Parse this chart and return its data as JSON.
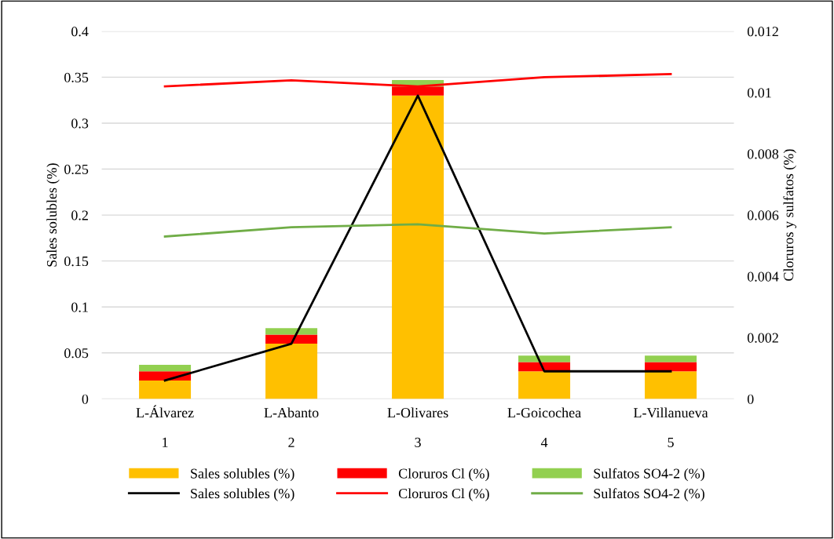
{
  "chart_data": {
    "type": "bar",
    "stacked": true,
    "ylabel": "Sales solubles (%)",
    "y2label": "Cloruros y sulfatos (%)",
    "categories": [
      "L-Álvarez\n\n1",
      "L-Abanto\n\n2",
      "L-Olivares\n\n3",
      "L-Goicochea\n\n4",
      "L-Villanueva\n\n5"
    ],
    "series": [
      {
        "name": "Sales solubles (%)",
        "color": "#ffc000",
        "values": [
          0.02,
          0.06,
          0.33,
          0.03,
          0.03
        ]
      },
      {
        "name": "Cloruros Cl (%)",
        "color": "#ff0000",
        "values": [
          0.01,
          0.01,
          0.01,
          0.01,
          0.01
        ]
      },
      {
        "name": "Sulfatos SO4-2 (%)",
        "color": "#92d050",
        "values": [
          0.007,
          0.007,
          0.007,
          0.007,
          0.007
        ]
      },
      {
        "name": "Sales solubles (%)",
        "type": "line",
        "axis": "y2",
        "color": "#000000",
        "values": [
          0.0006,
          0.0018,
          0.0099,
          0.0009,
          0.0009
        ]
      },
      {
        "name": "Cloruros Cl (%)",
        "type": "line",
        "axis": "y2",
        "color": "#ff0000",
        "values": [
          0.0102,
          0.0104,
          0.0102,
          0.0105,
          0.0106
        ]
      },
      {
        "name": "Sulfatos SO4-2 (%)",
        "type": "line",
        "axis": "y2",
        "color": "#70ad47",
        "values": [
          0.0053,
          0.0056,
          0.0057,
          0.0054,
          0.0056
        ]
      }
    ],
    "ylim": [
      0,
      0.4
    ],
    "yticks": [
      0,
      0.05,
      0.1,
      0.15,
      0.2,
      0.25,
      0.3,
      0.35,
      0.4
    ],
    "y2lim": [
      0,
      0.012
    ],
    "y2ticks": [
      0,
      0.002,
      0.004,
      0.006,
      0.008,
      0.01,
      0.012
    ],
    "grid": "y",
    "legend": "bottom",
    "marker": "none",
    "line_style": "solid"
  }
}
